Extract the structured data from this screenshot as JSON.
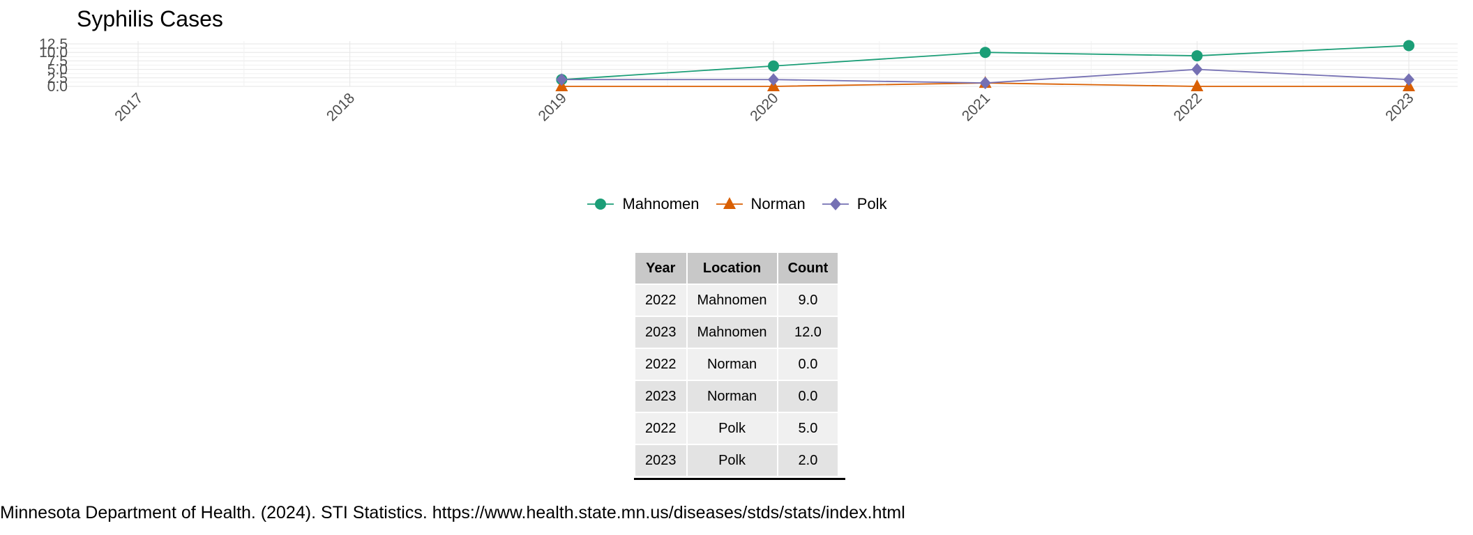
{
  "chart_data": {
    "type": "line",
    "title": "Syphilis Cases",
    "xlabel": "",
    "ylabel": "",
    "x": [
      "2017",
      "2018",
      "2019",
      "2020",
      "2021",
      "2022",
      "2023"
    ],
    "y_ticks": [
      "0.0",
      "2.5",
      "5.0",
      "7.5",
      "10.0",
      "12.5"
    ],
    "ylim": [
      0,
      12.5
    ],
    "grid": true,
    "legend_position": "bottom",
    "series": [
      {
        "name": "Mahnomen",
        "color": "#1b9e77",
        "marker": "circle",
        "x": [
          2019,
          2020,
          2021,
          2022,
          2023
        ],
        "values": [
          2,
          6,
          10,
          9,
          12
        ]
      },
      {
        "name": "Norman",
        "color": "#d95f02",
        "marker": "triangle",
        "x": [
          2019,
          2020,
          2021,
          2022,
          2023
        ],
        "values": [
          0,
          0,
          1,
          0,
          0
        ]
      },
      {
        "name": "Polk",
        "color": "#7570b3",
        "marker": "diamond",
        "x": [
          2019,
          2020,
          2021,
          2022,
          2023
        ],
        "values": [
          2,
          2,
          1,
          5,
          2
        ]
      }
    ]
  },
  "table": {
    "headers": [
      "Year",
      "Location",
      "Count"
    ],
    "rows": [
      [
        "2022",
        "Mahnomen",
        "9.0"
      ],
      [
        "2023",
        "Mahnomen",
        "12.0"
      ],
      [
        "2022",
        "Norman",
        "0.0"
      ],
      [
        "2023",
        "Norman",
        "0.0"
      ],
      [
        "2022",
        "Polk",
        "5.0"
      ],
      [
        "2023",
        "Polk",
        "2.0"
      ]
    ]
  },
  "citation": "Minnesota Department of Health. (2024). STI Statistics. https://www.health.state.mn.us/diseases/stds/stats/index.html"
}
